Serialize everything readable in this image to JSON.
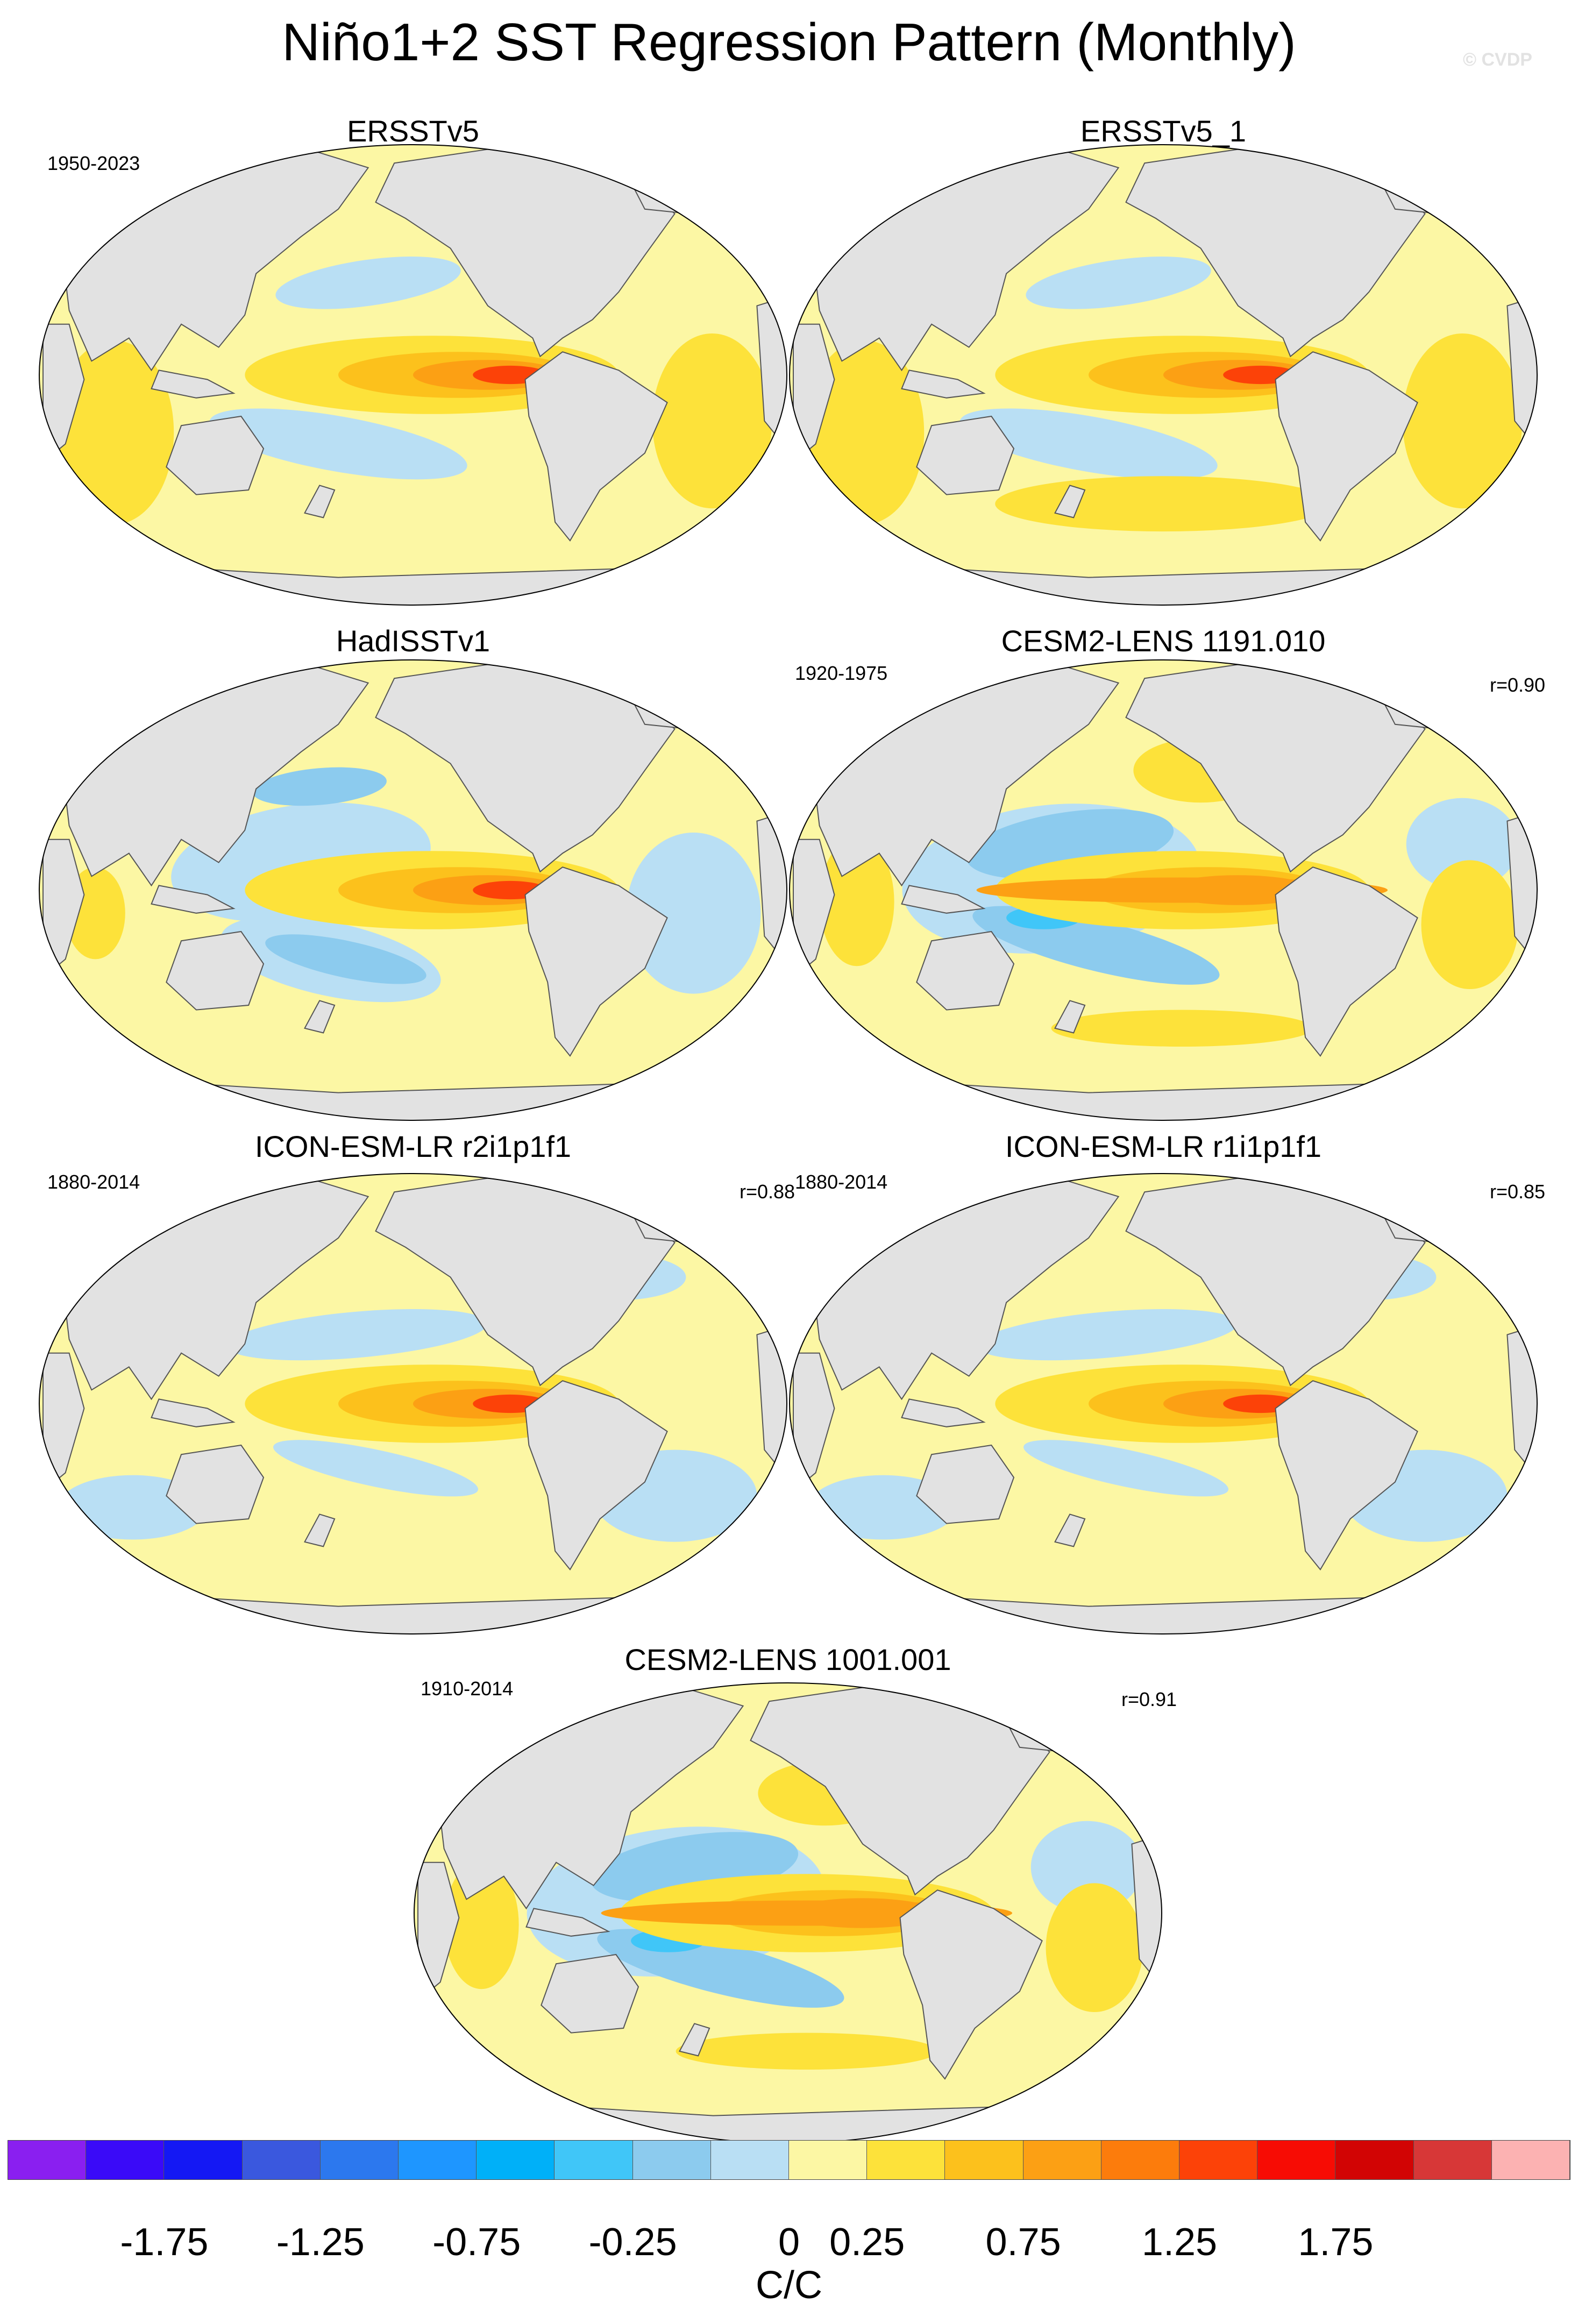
{
  "title": "Niño1+2 SST Regression Pattern (Monthly)",
  "copyright": "© CVDP",
  "panels": [
    {
      "id": "p1",
      "name": "ERSSTv5",
      "period": "1950-2023",
      "r": "",
      "pattern": "a"
    },
    {
      "id": "p2",
      "name": "ERSSTv5_1",
      "period": "",
      "r": "",
      "pattern": "b"
    },
    {
      "id": "p3",
      "name": "HadISSTv1",
      "period": "",
      "r": "",
      "pattern": "c"
    },
    {
      "id": "p4",
      "name": "CESM2-LENS 1191.010",
      "period": "1920-1975",
      "r": "r=0.90",
      "pattern": "d"
    },
    {
      "id": "p5",
      "name": "ICON-ESM-LR r2i1p1f1",
      "period": "1880-2014",
      "r": "r=0.88",
      "pattern": "e"
    },
    {
      "id": "p6",
      "name": "ICON-ESM-LR r1i1p1f1",
      "period": "1880-2014",
      "r": "r=0.85",
      "pattern": "e"
    },
    {
      "id": "p7",
      "name": "CESM2-LENS 1001.001",
      "period": "1910-2014",
      "r": "r=0.91",
      "pattern": "d"
    }
  ],
  "colorbar": {
    "colors": [
      "#8a1ff0",
      "#3a0af8",
      "#1418f4",
      "#3a58de",
      "#2c78ee",
      "#1e96ff",
      "#00b0f8",
      "#40c6f8",
      "#8ccbee",
      "#b9dff4",
      "#fcf7a4",
      "#fde23a",
      "#fcc11c",
      "#fca014",
      "#fc7c0c",
      "#fc4208",
      "#f70c04",
      "#d20404",
      "#d73737",
      "#fcb2b2"
    ],
    "labels": [
      "-1.75",
      "-1.25",
      "-0.75",
      "-0.25",
      "0",
      "0.25",
      "0.75",
      "1.25",
      "1.75"
    ],
    "label_boundaries": [
      2,
      4,
      6,
      8,
      10,
      11,
      13,
      15,
      17
    ],
    "units": "C/C"
  }
}
